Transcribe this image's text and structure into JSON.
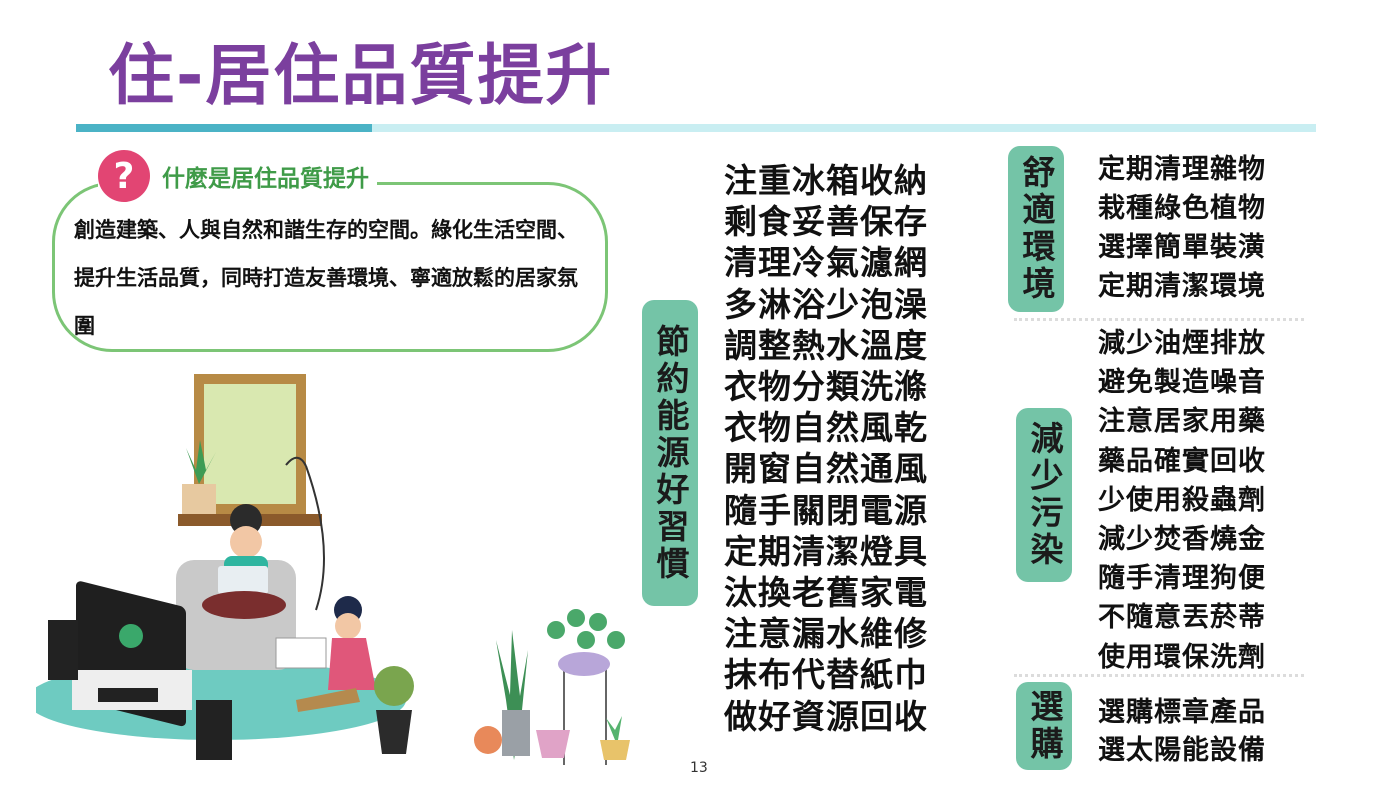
{
  "title": "住-居住品質提升",
  "question": {
    "icon": "question-mark-icon",
    "icon_glyph": "?",
    "heading": "什麼是居住品質提升",
    "body": "創造建築、人與自然和諧生存的空間。綠化生活空間、提升生活品質，同時打造友善環境、寧適放鬆的居家氛圍"
  },
  "energy": {
    "label": "節約能源好習慣",
    "items": [
      "注重冰箱收納",
      "剩食妥善保存",
      "清理冷氣濾網",
      "多淋浴少泡澡",
      "調整熱水溫度",
      "衣物分類洗滌",
      "衣物自然風乾",
      "開窗自然通風",
      "隨手關閉電源",
      "定期清潔燈具",
      "汰換老舊家電",
      "注意漏水維修",
      "抹布代替紙巾",
      "做好資源回收"
    ]
  },
  "comfort": {
    "label": "舒適環境",
    "items": [
      "定期清理雜物",
      "栽種綠色植物",
      "選擇簡單裝潢",
      "定期清潔環境"
    ]
  },
  "pollution": {
    "label": "減少污染",
    "items": [
      "減少油煙排放",
      "避免製造噪音",
      "注意居家用藥",
      "藥品確實回收",
      "少使用殺蟲劑",
      "減少焚香燒金",
      "隨手清理狗便",
      "不隨意丟菸蒂",
      "使用環保洗劑"
    ]
  },
  "purchase": {
    "label": "選購",
    "items": [
      "選購標章產品",
      "選太陽能設備"
    ]
  },
  "page_number": "13",
  "colors": {
    "title": "#7b3f9e",
    "accent_teal": "#4bb3c6",
    "label_green": "#74c4a7",
    "bubble_border": "#7cc576",
    "question_icon": "#e24573"
  }
}
